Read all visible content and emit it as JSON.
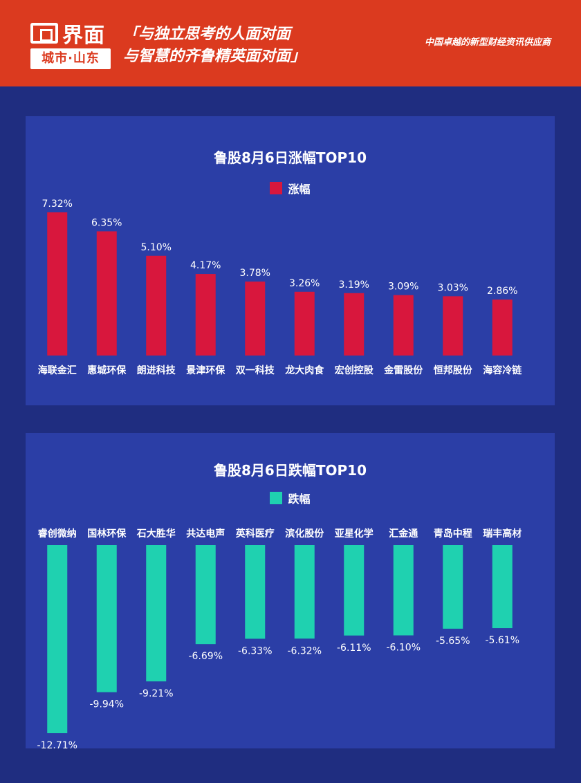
{
  "header": {
    "logo_name": "界面",
    "logo_sub": "城市·山东",
    "slogan_line1": "「与独立思考的人面对面",
    "slogan_line2": "与智慧的齐鲁精英面对面」",
    "tagline": "中国卓越的新型财经资讯供应商"
  },
  "colors": {
    "background": "#1f2d80",
    "panel": "#2b3ea6",
    "header": "#db3a1f",
    "rise": "#d8173d",
    "fall": "#1fd1b0"
  },
  "chart_data": [
    {
      "type": "bar",
      "title": "鲁股8月6日涨幅TOP10",
      "legend": "涨幅",
      "categories": [
        "海联金汇",
        "惠城环保",
        "朗进科技",
        "景津环保",
        "双一科技",
        "龙大肉食",
        "宏创控股",
        "金雷股份",
        "恒邦股份",
        "海容冷链"
      ],
      "values": [
        7.32,
        6.35,
        5.1,
        4.17,
        3.78,
        3.26,
        3.19,
        3.09,
        3.03,
        2.86
      ],
      "value_labels": [
        "7.32%",
        "6.35%",
        "5.10%",
        "4.17%",
        "3.78%",
        "3.26%",
        "3.19%",
        "3.09%",
        "3.03%",
        "2.86%"
      ],
      "color": "#d8173d"
    },
    {
      "type": "bar",
      "title": "鲁股8月6日跌幅TOP10",
      "legend": "跌幅",
      "categories": [
        "睿创微纳",
        "国林环保",
        "石大胜华",
        "共达电声",
        "英科医疗",
        "滨化股份",
        "亚星化学",
        "汇金通",
        "青岛中程",
        "瑞丰高材"
      ],
      "values": [
        -12.71,
        -9.94,
        -9.21,
        -6.69,
        -6.33,
        -6.32,
        -6.11,
        -6.1,
        -5.65,
        -5.61
      ],
      "value_labels": [
        "-12.71%",
        "-9.94%",
        "-9.21%",
        "-6.69%",
        "-6.33%",
        "-6.32%",
        "-6.11%",
        "-6.10%",
        "-5.65%",
        "-5.61%"
      ],
      "color": "#1fd1b0"
    }
  ]
}
